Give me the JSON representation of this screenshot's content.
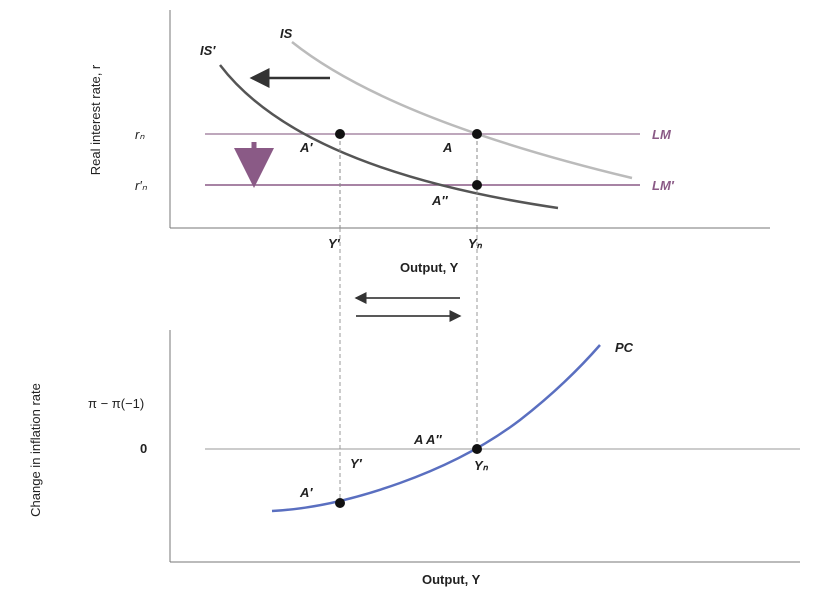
{
  "top_panel": {
    "y_axis_label": "Real interest rate, r",
    "x_axis_label": "Output, Y",
    "curves": {
      "is": "IS",
      "is_shifted": "IS′",
      "lm": "LM",
      "lm_shifted": "LM′"
    },
    "rate_labels": [
      "rₙ",
      "r′ₙ"
    ],
    "points": {
      "a_prime": "A′",
      "a": "A",
      "a_double_prime": "A″"
    },
    "output_labels": [
      "Y′",
      "Yₙ"
    ]
  },
  "bottom_panel": {
    "y_axis_label": "Change in inflation rate",
    "y_quantity": "π − π(−1)",
    "zero_label": "0",
    "x_axis_label": "Output, Y",
    "curve": "PC",
    "points": {
      "a_a_double_prime": "A A″",
      "a_prime": "A′"
    },
    "output_labels": [
      "Y′",
      "Yₙ"
    ]
  }
}
